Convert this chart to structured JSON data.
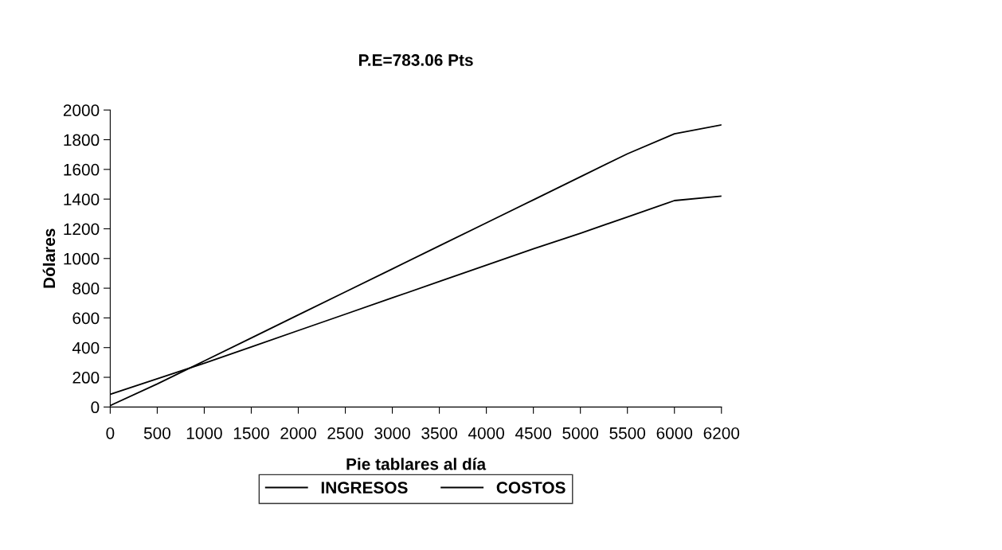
{
  "chart_data": {
    "type": "line",
    "title": "P.E=783.06 Pts",
    "xlabel": "Pie tablares al día",
    "ylabel": "Dólares",
    "categories": [
      "0",
      "500",
      "1000",
      "1500",
      "2000",
      "2500",
      "3000",
      "3500",
      "4000",
      "4500",
      "5000",
      "5500",
      "6000",
      "6200"
    ],
    "series": [
      {
        "name": "INGRESOS",
        "color": "#000000",
        "values": [
          10,
          155,
          310,
          465,
          620,
          775,
          930,
          1085,
          1240,
          1395,
          1550,
          1705,
          1840,
          1900
        ]
      },
      {
        "name": "COSTOS",
        "color": "#000000",
        "values": [
          85,
          190,
          295,
          405,
          515,
          625,
          735,
          845,
          955,
          1065,
          1170,
          1280,
          1390,
          1420
        ]
      }
    ],
    "ylim": [
      0,
      2000
    ],
    "yticks": [
      0,
      200,
      400,
      600,
      800,
      1000,
      1200,
      1400,
      1600,
      1800,
      2000
    ],
    "grid": false,
    "legend": "bottom",
    "marker": "none",
    "line_style": "solid"
  }
}
